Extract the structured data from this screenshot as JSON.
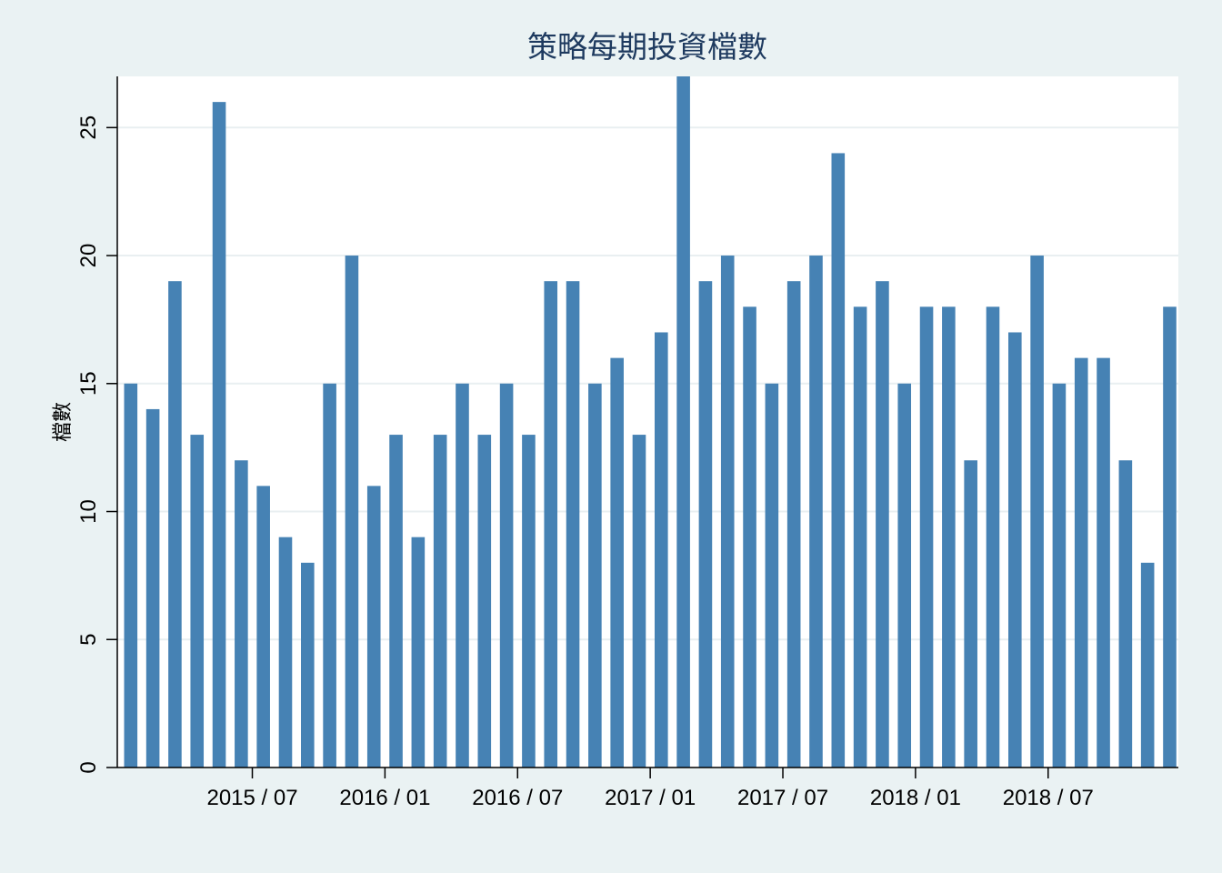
{
  "chart_data": {
    "type": "bar",
    "title": "策略每期投資檔數",
    "xlabel": "",
    "ylabel": "檔數",
    "ylim": [
      0,
      27
    ],
    "yticks": [
      0,
      5,
      10,
      15,
      20,
      25
    ],
    "grid": true,
    "legend": "none",
    "bar_color": "#4682b4",
    "plot_background": "#ffffff",
    "page_background": "#eaf2f3",
    "categories": [
      "2015/01",
      "2015/02",
      "2015/03",
      "2015/04",
      "2015/05",
      "2015/06",
      "2015/07",
      "2015/08",
      "2015/09",
      "2015/10",
      "2015/11",
      "2015/12",
      "2016/01",
      "2016/02",
      "2016/03",
      "2016/04",
      "2016/05",
      "2016/06",
      "2016/07",
      "2016/08",
      "2016/09",
      "2016/10",
      "2016/11",
      "2016/12",
      "2017/01",
      "2017/02",
      "2017/03",
      "2017/04",
      "2017/05",
      "2017/06",
      "2017/07",
      "2017/08",
      "2017/09",
      "2017/10",
      "2017/11",
      "2017/12",
      "2018/01",
      "2018/02",
      "2018/03",
      "2018/04",
      "2018/05",
      "2018/06",
      "2018/07",
      "2018/08",
      "2018/09",
      "2018/10",
      "2018/11",
      "2018/12"
    ],
    "values": [
      15,
      14,
      19,
      13,
      26,
      12,
      11,
      9,
      8,
      15,
      20,
      11,
      13,
      9,
      13,
      15,
      13,
      15,
      13,
      19,
      19,
      15,
      16,
      13,
      17,
      27,
      19,
      20,
      18,
      15,
      19,
      20,
      24,
      18,
      19,
      15,
      18,
      18,
      12,
      18,
      17,
      20,
      15,
      16,
      16,
      12,
      8,
      18
    ],
    "xticks": [
      {
        "label": "2015 / 07",
        "index": 6
      },
      {
        "label": "2016 / 01",
        "index": 12
      },
      {
        "label": "2016 / 07",
        "index": 18
      },
      {
        "label": "2017 / 01",
        "index": 24
      },
      {
        "label": "2017 / 07",
        "index": 30
      },
      {
        "label": "2018 / 01",
        "index": 36
      },
      {
        "label": "2018 / 07",
        "index": 42
      }
    ]
  }
}
